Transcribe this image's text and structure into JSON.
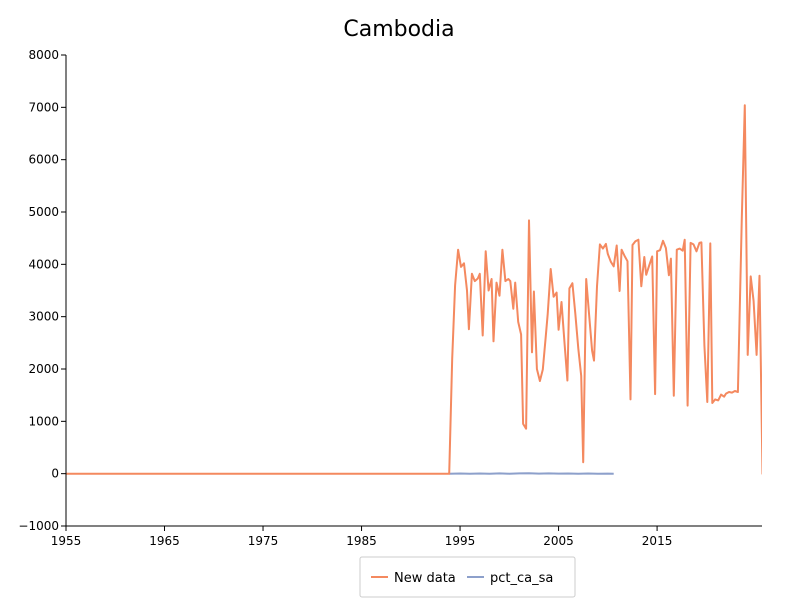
{
  "chart_data": {
    "type": "line",
    "title": "Cambodia",
    "xlabel": "",
    "ylabel": "",
    "xlim": [
      1955,
      2022.5
    ],
    "ylim": [
      -1000,
      8000
    ],
    "x_ticks": [
      1955,
      1965,
      1975,
      1985,
      1995,
      2005,
      2015
    ],
    "x_tick_labels": [
      "1955",
      "1965",
      "1975",
      "1985",
      "1995",
      "2005",
      "2015"
    ],
    "y_ticks": [
      -1000,
      0,
      1000,
      2000,
      3000,
      4000,
      5000,
      6000,
      7000,
      8000
    ],
    "y_tick_labels": [
      "−1000",
      "0",
      "1000",
      "2000",
      "3000",
      "4000",
      "5000",
      "6000",
      "7000",
      "8000"
    ],
    "grid": false,
    "legend_position": "bottom-center",
    "series": [
      {
        "name": "New data",
        "color": "#f4895f",
        "points": [
          [
            1955,
            0
          ],
          [
            1993.9,
            0
          ],
          [
            1994.2,
            2200
          ],
          [
            1994.5,
            3600
          ],
          [
            1994.8,
            4280
          ],
          [
            1995.1,
            3950
          ],
          [
            1995.4,
            4020
          ],
          [
            1995.7,
            3500
          ],
          [
            1995.9,
            2760
          ],
          [
            1996.2,
            3820
          ],
          [
            1996.5,
            3680
          ],
          [
            1996.8,
            3730
          ],
          [
            1997.0,
            3820
          ],
          [
            1997.3,
            2640
          ],
          [
            1997.6,
            4250
          ],
          [
            1997.9,
            3500
          ],
          [
            1998.2,
            3720
          ],
          [
            1998.4,
            2530
          ],
          [
            1998.7,
            3650
          ],
          [
            1999.0,
            3400
          ],
          [
            1999.3,
            4280
          ],
          [
            1999.6,
            3680
          ],
          [
            1999.9,
            3720
          ],
          [
            2000.1,
            3680
          ],
          [
            2000.4,
            3150
          ],
          [
            2000.6,
            3650
          ],
          [
            2000.9,
            2900
          ],
          [
            2001.2,
            2660
          ],
          [
            2001.4,
            950
          ],
          [
            2001.7,
            860
          ],
          [
            2002.0,
            4840
          ],
          [
            2002.3,
            2320
          ],
          [
            2002.5,
            3480
          ],
          [
            2002.8,
            2000
          ],
          [
            2003.1,
            1770
          ],
          [
            2003.4,
            1990
          ],
          [
            2003.7,
            2630
          ],
          [
            2003.9,
            3050
          ],
          [
            2004.2,
            3910
          ],
          [
            2004.5,
            3380
          ],
          [
            2004.8,
            3460
          ],
          [
            2005.0,
            2750
          ],
          [
            2005.3,
            3280
          ],
          [
            2005.6,
            2500
          ],
          [
            2005.9,
            1780
          ],
          [
            2006.1,
            3540
          ],
          [
            2006.4,
            3640
          ],
          [
            2006.7,
            3060
          ],
          [
            2007.0,
            2390
          ],
          [
            2007.3,
            1870
          ],
          [
            2007.5,
            220
          ],
          [
            2007.8,
            3720
          ],
          [
            2008.1,
            3040
          ],
          [
            2008.4,
            2350
          ],
          [
            2008.6,
            2160
          ],
          [
            2008.9,
            3580
          ],
          [
            2009.2,
            4380
          ],
          [
            2009.5,
            4300
          ],
          [
            2009.8,
            4390
          ],
          [
            2010.0,
            4200
          ],
          [
            2010.3,
            4050
          ],
          [
            2010.6,
            3960
          ],
          [
            2010.9,
            4360
          ],
          [
            2011.2,
            3490
          ],
          [
            2011.4,
            4280
          ],
          [
            2011.7,
            4160
          ],
          [
            2012.0,
            4060
          ],
          [
            2012.3,
            1420
          ],
          [
            2012.5,
            4370
          ],
          [
            2012.8,
            4440
          ],
          [
            2013.1,
            4470
          ],
          [
            2013.4,
            3580
          ],
          [
            2013.7,
            4140
          ],
          [
            2013.9,
            3800
          ],
          [
            2014.2,
            3980
          ],
          [
            2014.5,
            4150
          ],
          [
            2014.8,
            1520
          ],
          [
            2015.0,
            4250
          ],
          [
            2015.3,
            4270
          ],
          [
            2015.6,
            4450
          ],
          [
            2015.9,
            4310
          ],
          [
            2016.2,
            3790
          ],
          [
            2016.4,
            4110
          ],
          [
            2016.7,
            1490
          ],
          [
            2017.0,
            4280
          ],
          [
            2017.3,
            4300
          ],
          [
            2017.6,
            4260
          ],
          [
            2017.8,
            4470
          ],
          [
            2018.1,
            1300
          ],
          [
            2018.4,
            4410
          ],
          [
            2018.7,
            4380
          ],
          [
            2019.0,
            4250
          ],
          [
            2019.3,
            4410
          ],
          [
            2019.5,
            4420
          ],
          [
            2019.8,
            2450
          ],
          [
            2020.1,
            1370
          ],
          [
            2020.4,
            4400
          ],
          [
            2020.6,
            1350
          ],
          [
            2020.9,
            1420
          ],
          [
            2021.2,
            1400
          ],
          [
            2021.5,
            1510
          ],
          [
            2021.8,
            1470
          ],
          [
            2022.0,
            1530
          ],
          [
            2022.3,
            1560
          ],
          [
            2022.6,
            1550
          ],
          [
            2022.9,
            1580
          ],
          [
            2023.2,
            1560
          ],
          [
            2023.6,
            4880
          ],
          [
            2023.9,
            7040
          ],
          [
            2024.2,
            2270
          ],
          [
            2024.5,
            3770
          ],
          [
            2024.8,
            3300
          ],
          [
            2025.1,
            2270
          ],
          [
            2025.4,
            3780
          ],
          [
            2025.7,
            0
          ],
          [
            2026.2,
            0
          ]
        ]
      },
      {
        "name": "pct_ca_sa",
        "color": "#8da0cb",
        "points": [
          [
            1993.9,
            0
          ],
          [
            1995,
            3
          ],
          [
            1996,
            -2
          ],
          [
            1997,
            4
          ],
          [
            1998,
            -1
          ],
          [
            1999,
            5
          ],
          [
            2000,
            0
          ],
          [
            2001,
            6
          ],
          [
            2002,
            8
          ],
          [
            2003,
            2
          ],
          [
            2004,
            5
          ],
          [
            2005,
            1
          ],
          [
            2006,
            4
          ],
          [
            2007,
            0
          ],
          [
            2008,
            3
          ],
          [
            2009,
            -1
          ],
          [
            2010,
            2
          ],
          [
            2010.6,
            0
          ]
        ]
      }
    ]
  }
}
